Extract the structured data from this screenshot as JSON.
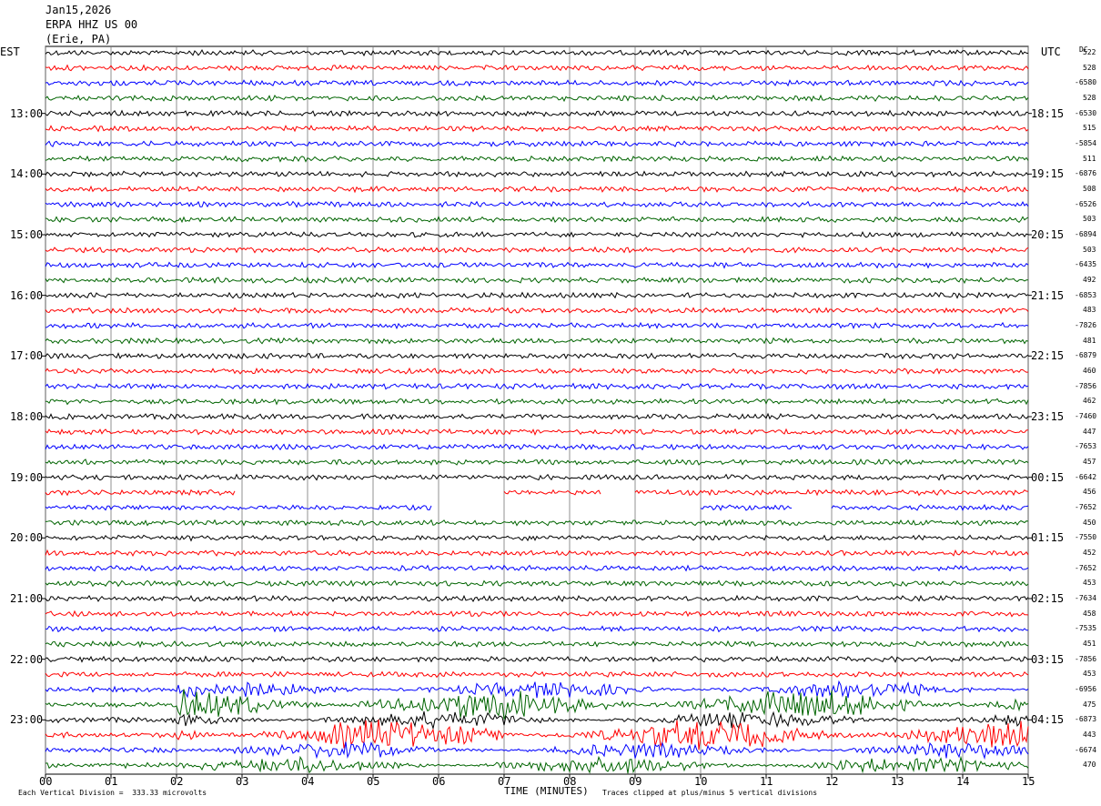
{
  "header": {
    "date": "Jan15,2026",
    "station": "ERPA HHZ US 00",
    "location": "(Erie, PA)"
  },
  "left_tz": "EST",
  "right_tz": "UTC",
  "dc_label": "DC",
  "left_hours": [
    "13:00",
    "14:00",
    "15:00",
    "16:00",
    "17:00",
    "18:00",
    "19:00",
    "20:00",
    "21:00",
    "22:00",
    "23:00"
  ],
  "right_hours": [
    "18:15",
    "19:15",
    "20:15",
    "21:15",
    "22:15",
    "23:15",
    "00:15",
    "01:15",
    "02:15",
    "03:15",
    "04:15"
  ],
  "x_ticks": [
    "00",
    "01",
    "02",
    "03",
    "04",
    "05",
    "06",
    "07",
    "08",
    "09",
    "10",
    "11",
    "12",
    "13",
    "14",
    "15"
  ],
  "xlabel": "TIME (MINUTES)",
  "footer_left": "Each Vertical Division =  333.33 microvolts",
  "footer_right": "Traces clipped at plus/minus 5 vertical divisions",
  "chart_data": {
    "type": "line",
    "title": "ERPA HHZ US 00",
    "xlabel": "TIME (MINUTES)",
    "xlim": [
      0,
      15
    ],
    "trace_colors": [
      "#000000",
      "#ff0000",
      "#0000ff",
      "#006400"
    ],
    "dc_offsets": [
      "522",
      "528",
      "-6580",
      "528",
      "-6530",
      "515",
      "-5854",
      "511",
      "-6876",
      "508",
      "-6526",
      "503",
      "-6894",
      "503",
      "-6435",
      "492",
      "-6853",
      "483",
      "-7826",
      "481",
      "-6879",
      "460",
      "-7856",
      "462",
      "-7460",
      "447",
      "-7653",
      "457",
      "-6642",
      "456",
      "-7652",
      "450",
      "-7550",
      "452",
      "-7652",
      "453",
      "-7634",
      "458",
      "-7535",
      "451",
      "-7856",
      "453",
      "-6956",
      "475",
      "-6873",
      "443",
      "-6674",
      "470"
    ],
    "gaps": [
      {
        "trace": 29,
        "from_min": 2.9,
        "to_min": 7.0
      },
      {
        "trace": 29,
        "from_min": 8.5,
        "to_min": 9.0
      },
      {
        "trace": 30,
        "from_min": 5.9,
        "to_min": 10.0
      },
      {
        "trace": 30,
        "from_min": 11.4,
        "to_min": 12.0
      }
    ],
    "events": [
      {
        "from_trace": 42,
        "to_trace": 47,
        "start_min": 2.0,
        "note": "large ground motion"
      }
    ]
  }
}
